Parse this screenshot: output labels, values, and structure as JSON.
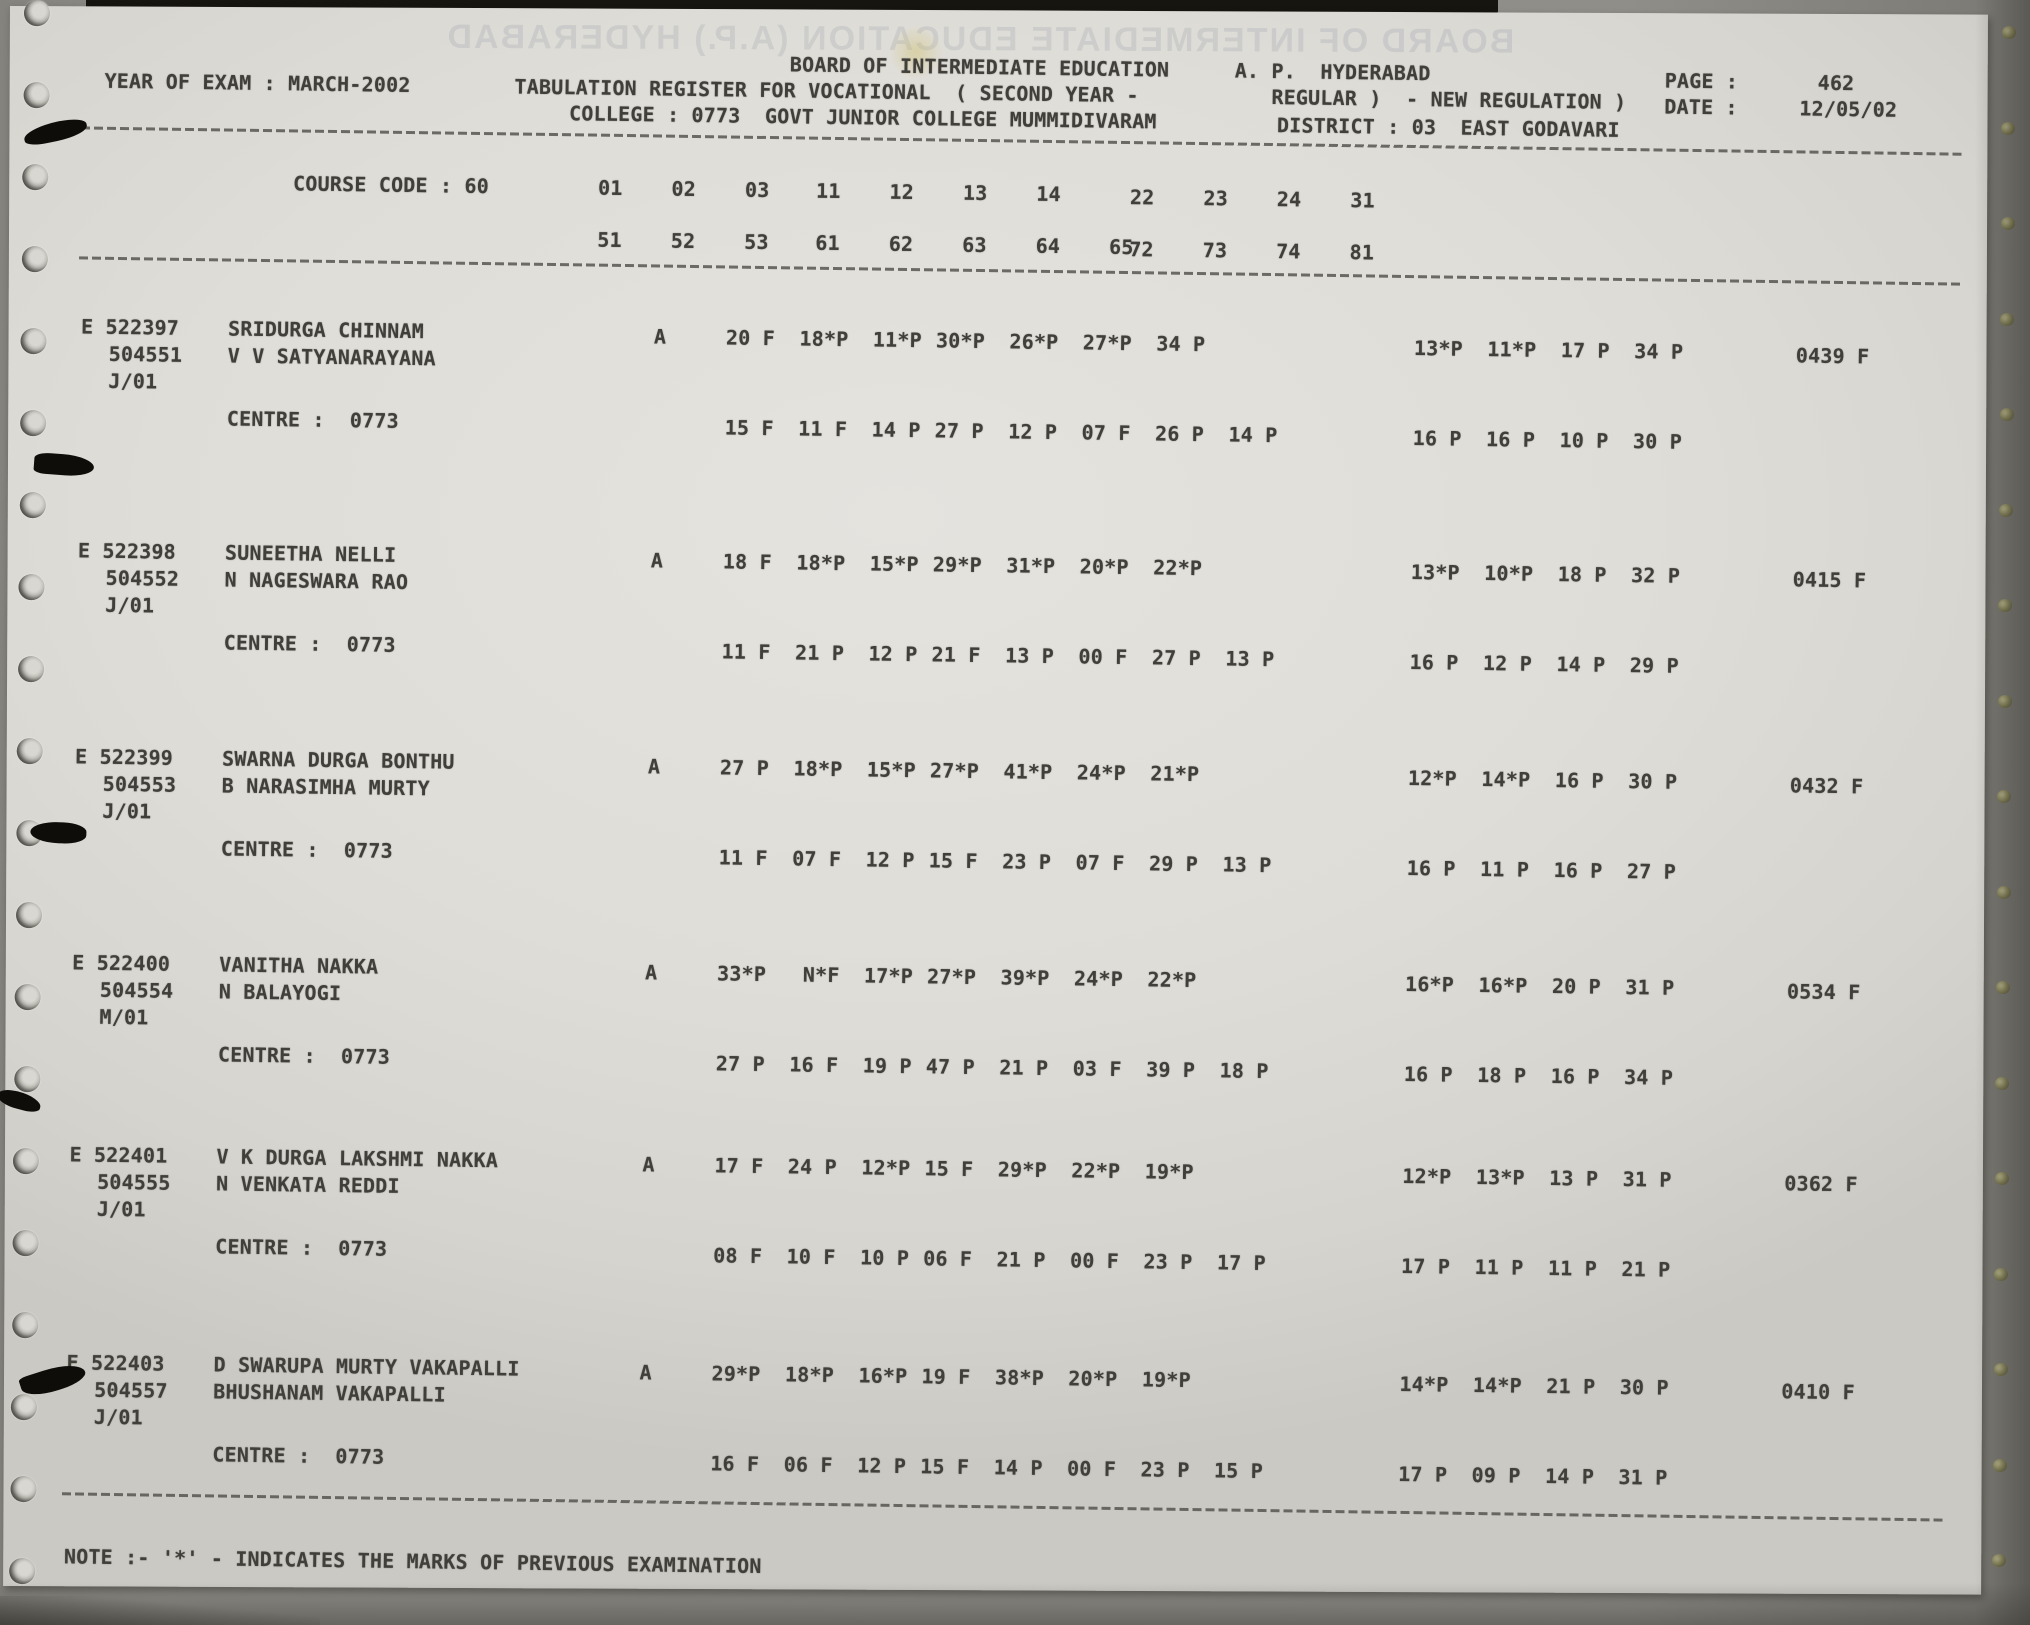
{
  "watermark": "BOARD OF INTERMEDIATE EDUCATION (A.P.) HYDERABAD",
  "header": {
    "board": "BOARD OF INTERMEDIATE EDUCATION",
    "region": "A. P.  HYDERABAD",
    "page_label": "PAGE :",
    "page_value": "462",
    "year_line": "YEAR OF EXAM : MARCH-2002",
    "register_line": "TABULATION REGISTER FOR VOCATIONAL  ( SECOND YEAR -",
    "regular_line": "REGULAR )  - NEW REGULATION )",
    "date_label": "DATE :",
    "date_value": "12/05/02",
    "college_line": "COLLEGE : 0773  GOVT JUNIOR COLLEGE MUMMIDIVARAM",
    "district_line": "DISTRICT : 03  EAST GODAVARI"
  },
  "course": {
    "label": "COURSE CODE : 60",
    "row1": {
      "g1": [
        "01",
        "02",
        "03"
      ],
      "g2": [
        "11",
        "12",
        "13",
        "14"
      ],
      "g3": [
        "22",
        "23",
        "24",
        "31"
      ]
    },
    "row2": {
      "g1": [
        "51",
        "52",
        "53"
      ],
      "g2": [
        "61",
        "62",
        "63",
        "64",
        "65"
      ],
      "g3": [
        "72",
        "73",
        "74",
        "81"
      ]
    }
  },
  "records": [
    {
      "reg": "E 522397",
      "name": "SRIDURGA CHINNAM",
      "alt_no": "504551",
      "parent": "V V SATYANARAYANA",
      "medium": "J/01",
      "att": "A",
      "g1": [
        "20 F",
        "18*P",
        "11*P"
      ],
      "g2": [
        "30*P",
        "26*P",
        "27*P",
        "34 P"
      ],
      "g3": [
        "13*P",
        "11*P",
        "17 P",
        "34 P"
      ],
      "total": "0439 F",
      "centre_label": "CENTRE :",
      "centre_code": "0773",
      "c1": [
        "15 F",
        "11 F",
        "14 P"
      ],
      "c2": [
        "27 P",
        "12 P",
        "07 F",
        "26 P",
        "14 P"
      ],
      "c3": [
        "16 P",
        "16 P",
        "10 P",
        "30 P"
      ]
    },
    {
      "reg": "E 522398",
      "name": "SUNEETHA NELLI",
      "alt_no": "504552",
      "parent": "N NAGESWARA RAO",
      "medium": "J/01",
      "att": "A",
      "g1": [
        "18 F",
        "18*P",
        "15*P"
      ],
      "g2": [
        "29*P",
        "31*P",
        "20*P",
        "22*P"
      ],
      "g3": [
        "13*P",
        "10*P",
        "18 P",
        "32 P"
      ],
      "total": "0415 F",
      "centre_label": "CENTRE :",
      "centre_code": "0773",
      "c1": [
        "11 F",
        "21 P",
        "12 P"
      ],
      "c2": [
        "21 F",
        "13 P",
        "00 F",
        "27 P",
        "13 P"
      ],
      "c3": [
        "16 P",
        "12 P",
        "14 P",
        "29 P"
      ]
    },
    {
      "reg": "E 522399",
      "name": "SWARNA DURGA BONTHU",
      "alt_no": "504553",
      "parent": "B NARASIMHA MURTY",
      "medium": "J/01",
      "att": "A",
      "g1": [
        "27 P",
        "18*P",
        "15*P"
      ],
      "g2": [
        "27*P",
        "41*P",
        "24*P",
        "21*P"
      ],
      "g3": [
        "12*P",
        "14*P",
        "16 P",
        "30 P"
      ],
      "total": "0432 F",
      "centre_label": "CENTRE :",
      "centre_code": "0773",
      "c1": [
        "11 F",
        "07 F",
        "12 P"
      ],
      "c2": [
        "15 F",
        "23 P",
        "07 F",
        "29 P",
        "13 P"
      ],
      "c3": [
        "16 P",
        "11 P",
        "16 P",
        "27 P"
      ]
    },
    {
      "reg": "E 522400",
      "name": "VANITHA NAKKA",
      "alt_no": "504554",
      "parent": "N BALAYOGI",
      "medium": "M/01",
      "att": "A",
      "g1": [
        "33*P",
        " N*F",
        "17*P"
      ],
      "g2": [
        "27*P",
        "39*P",
        "24*P",
        "22*P"
      ],
      "g3": [
        "16*P",
        "16*P",
        "20 P",
        "31 P"
      ],
      "total": "0534 F",
      "centre_label": "CENTRE :",
      "centre_code": "0773",
      "c1": [
        "27 P",
        "16 F",
        "19 P"
      ],
      "c2": [
        "47 P",
        "21 P",
        "03 F",
        "39 P",
        "18 P"
      ],
      "c3": [
        "16 P",
        "18 P",
        "16 P",
        "34 P"
      ]
    },
    {
      "reg": "E 522401",
      "name": "V K DURGA LAKSHMI NAKKA",
      "alt_no": "504555",
      "parent": "N VENKATA REDDI",
      "medium": "J/01",
      "att": "A",
      "g1": [
        "17 F",
        "24 P",
        "12*P"
      ],
      "g2": [
        "15 F",
        "29*P",
        "22*P",
        "19*P"
      ],
      "g3": [
        "12*P",
        "13*P",
        "13 P",
        "31 P"
      ],
      "total": "0362 F",
      "centre_label": "CENTRE :",
      "centre_code": "0773",
      "c1": [
        "08 F",
        "10 F",
        "10 P"
      ],
      "c2": [
        "06 F",
        "21 P",
        "00 F",
        "23 P",
        "17 P"
      ],
      "c3": [
        "17 P",
        "11 P",
        "11 P",
        "21 P"
      ]
    },
    {
      "reg": "E 522403",
      "name": "D SWARUPA MURTY VAKAPALLI",
      "alt_no": "504557",
      "parent": "BHUSHANAM VAKAPALLI",
      "medium": "J/01",
      "att": "A",
      "g1": [
        "29*P",
        "18*P",
        "16*P"
      ],
      "g2": [
        "19 F",
        "38*P",
        "20*P",
        "19*P"
      ],
      "g3": [
        "14*P",
        "14*P",
        "21 P",
        "30 P"
      ],
      "total": "0410 F",
      "centre_label": "CENTRE :",
      "centre_code": "0773",
      "c1": [
        "16 F",
        "06 F",
        "12 P"
      ],
      "c2": [
        "15 F",
        "14 P",
        "00 F",
        "23 P",
        "15 P"
      ],
      "c3": [
        "17 P",
        "09 P",
        "14 P",
        "31 P"
      ]
    }
  ],
  "note": "NOTE :- '*' - INDICATES THE MARKS OF PREVIOUS EXAMINATION"
}
